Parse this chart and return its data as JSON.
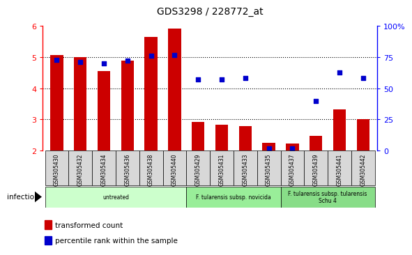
{
  "title": "GDS3298 / 228772_at",
  "samples": [
    "GSM305430",
    "GSM305432",
    "GSM305434",
    "GSM305436",
    "GSM305438",
    "GSM305440",
    "GSM305429",
    "GSM305431",
    "GSM305433",
    "GSM305435",
    "GSM305437",
    "GSM305439",
    "GSM305441",
    "GSM305442"
  ],
  "bar_values": [
    5.08,
    5.0,
    4.55,
    4.9,
    5.65,
    5.92,
    2.93,
    2.83,
    2.78,
    2.25,
    2.22,
    2.47,
    3.32,
    3.0
  ],
  "dot_values": [
    73,
    71,
    70,
    72,
    76,
    77,
    57,
    57,
    58,
    2,
    2,
    40,
    63,
    58
  ],
  "bar_color": "#cc0000",
  "dot_color": "#0000cc",
  "ylim_left": [
    2,
    6
  ],
  "ylim_right": [
    0,
    100
  ],
  "yticks_left": [
    2,
    3,
    4,
    5,
    6
  ],
  "yticks_right": [
    0,
    25,
    50,
    75,
    100
  ],
  "ytick_labels_right": [
    "0",
    "25",
    "50",
    "75",
    "100%"
  ],
  "groups": [
    {
      "label": "untreated",
      "start": 0,
      "end": 6,
      "color": "#ccffcc"
    },
    {
      "label": "F. tularensis subsp. novicida",
      "start": 6,
      "end": 10,
      "color": "#99ee99"
    },
    {
      "label": "F. tularensis subsp. tularensis\nSchu 4",
      "start": 10,
      "end": 14,
      "color": "#88dd88"
    }
  ],
  "legend_bar_label": "transformed count",
  "legend_dot_label": "percentile rank within the sample",
  "infection_label": "infection",
  "bar_width": 0.55
}
